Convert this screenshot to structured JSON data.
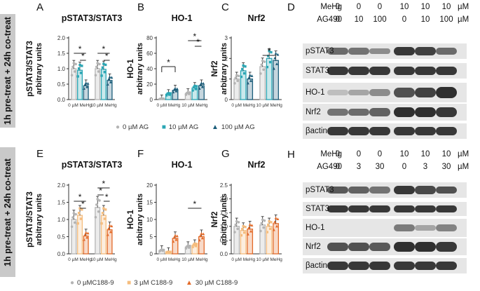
{
  "side_labels": [
    "1h pre-treat + 24h co-treat",
    "1h pre-treat + 24h co-treat"
  ],
  "colors": {
    "top": [
      "#b4b4b4",
      "#2aa6b4",
      "#1b5d7a"
    ],
    "bottom": [
      "#b4b4b4",
      "#f5bd7e",
      "#e36a28"
    ]
  },
  "panels": [
    {
      "letter": "A",
      "title": "pSTAT3/STAT3",
      "ylabel_lines": [
        "pSTAT3/STAT3",
        "arbitrary units"
      ],
      "yticks": [
        "0.0",
        "0.5",
        "1.0",
        "1.5",
        "2.0"
      ],
      "ymax": 2,
      "xlabels": [
        "0 µM MeHg",
        "10 µM MeHg"
      ],
      "scheme": "top",
      "chart_data": {
        "type": "bar",
        "categories": [
          "0 µM MeHg",
          "10 µM MeHg"
        ],
        "series": [
          {
            "name": "0 µM AG",
            "values": [
              1.0,
              1.0
            ]
          },
          {
            "name": "10 µM AG",
            "values": [
              0.95,
              0.98
            ]
          },
          {
            "name": "100 µM AG",
            "values": [
              0.45,
              0.62
            ]
          }
        ],
        "ylim": [
          0,
          2
        ]
      },
      "signif": [
        "*",
        "*",
        "*",
        "*"
      ]
    },
    {
      "letter": "B",
      "title": "HO-1",
      "ylabel_lines": [
        "HO-1",
        "arbitrary units"
      ],
      "yticks": [
        "0",
        "20",
        "40",
        "60",
        "80"
      ],
      "ymax": 80,
      "xlabels": [
        "0 µM MeHg",
        "10 µM MeHg"
      ],
      "scheme": "top",
      "chart_data": {
        "type": "bar",
        "categories": [
          "0 µM MeHg",
          "10 µM MeHg"
        ],
        "series": [
          {
            "name": "0 µM AG",
            "values": [
              1,
              8
            ]
          },
          {
            "name": "10 µM AG",
            "values": [
              7,
              15
            ]
          },
          {
            "name": "100 µM AG",
            "values": [
              12,
              18
            ]
          }
        ],
        "ylim": [
          0,
          80
        ]
      },
      "signif": [
        "*",
        "*",
        "*"
      ]
    },
    {
      "letter": "C",
      "title": "Nrf2",
      "ylabel_lines": [
        "Nrf2",
        "arbitrary units"
      ],
      "yticks": [
        "0",
        "1",
        "2",
        "3"
      ],
      "ymax": 3,
      "xlabels": [
        "0 µM MeHg",
        "10 µM MeHg"
      ],
      "scheme": "top",
      "chart_data": {
        "type": "bar",
        "categories": [
          "0 µM MeHg",
          "10 µM MeHg"
        ],
        "series": [
          {
            "name": "0 µM AG",
            "values": [
              1.0,
              1.6
            ]
          },
          {
            "name": "10 µM AG",
            "values": [
              1.4,
              2.0
            ]
          },
          {
            "name": "100 µM AG",
            "values": [
              1.0,
              1.9
            ]
          }
        ],
        "ylim": [
          0,
          3
        ]
      },
      "signif": [
        "*"
      ]
    },
    {
      "letter": "E",
      "title": "pSTAT3/STAT3",
      "ylabel_lines": [
        "pSTAT3/STAT3",
        "arbitrary units"
      ],
      "yticks": [
        "0.0",
        "0.5",
        "1.0",
        "1.5",
        "2.0"
      ],
      "ymax": 2,
      "xlabels": [
        "0 µM MeHg",
        "10 µM MeHg"
      ],
      "scheme": "bottom",
      "chart_data": {
        "type": "bar",
        "categories": [
          "0 µM MeHg",
          "10 µM MeHg"
        ],
        "series": [
          {
            "name": "0 µMC188-9",
            "values": [
              1.0,
              1.35
            ]
          },
          {
            "name": "3 µM C188-9",
            "values": [
              1.12,
              1.12
            ]
          },
          {
            "name": "30 µM C188-9",
            "values": [
              0.52,
              0.7
            ]
          }
        ],
        "ylim": [
          0,
          2
        ]
      },
      "signif": [
        "*",
        "*",
        "*",
        "*",
        "*"
      ]
    },
    {
      "letter": "F",
      "title": "HO-1",
      "ylabel_lines": [
        "HO-1",
        "arbitrary units"
      ],
      "yticks": [
        "0",
        "5",
        "10",
        "15",
        "20"
      ],
      "ymax": 20,
      "xlabels": [
        "0 µM MeHg",
        "10 µM MeHg"
      ],
      "scheme": "bottom",
      "chart_data": {
        "type": "bar",
        "categories": [
          "0 µM MeHg",
          "10 µM MeHg"
        ],
        "series": [
          {
            "name": "0 µMC188-9",
            "values": [
              1.0,
              2.0
            ]
          },
          {
            "name": "3 µM C188-9",
            "values": [
              0.5,
              2.5
            ]
          },
          {
            "name": "30 µM C188-9",
            "values": [
              4.5,
              5.0
            ]
          }
        ],
        "ylim": [
          0,
          20
        ]
      },
      "signif": [
        "*"
      ]
    },
    {
      "letter": "G",
      "title": "Nrf2",
      "ylabel_lines": [
        "Nrf2",
        "arbitrary units"
      ],
      "yticks": [
        "0.0",
        "0.5",
        "1.0",
        "1.5",
        "2.0",
        "2.5"
      ],
      "ymax": 2.5,
      "xlabels": [
        "0 µM MeHg",
        "10 µM MeHg"
      ],
      "scheme": "bottom",
      "chart_data": {
        "type": "bar",
        "categories": [
          "0 µM MeHg",
          "10 µM MeHg"
        ],
        "series": [
          {
            "name": "0 µMC188-9",
            "values": [
              1.0,
              1.05
            ]
          },
          {
            "name": "3 µM C188-9",
            "values": [
              0.85,
              1.0
            ]
          },
          {
            "name": "30 µM C188-9",
            "values": [
              0.9,
              1.1
            ]
          }
        ],
        "ylim": [
          0,
          2.5
        ]
      },
      "signif": []
    }
  ],
  "legends": {
    "top": [
      "0 µM AG",
      "10 µM AG",
      "100 µM AG"
    ],
    "bottom": [
      "0 µMC188-9",
      "3 µM C188-9",
      "30 µM C188-9"
    ]
  },
  "blots": [
    {
      "letter": "D",
      "rows": [
        {
          "label": "MeHg",
          "values": [
            "0",
            "0",
            "0",
            "10",
            "10",
            "10"
          ],
          "unit": "µM"
        },
        {
          "label": "AG490",
          "values": [
            "0",
            "10",
            "100",
            "0",
            "10",
            "100"
          ],
          "unit": "µM"
        }
      ],
      "lanes": [
        {
          "name": "pSTAT3",
          "intensity": [
            0.55,
            0.5,
            0.35,
            0.85,
            0.8,
            0.55
          ]
        },
        {
          "name": "STAT3",
          "intensity": [
            0.85,
            0.85,
            0.85,
            0.85,
            0.85,
            0.85
          ]
        },
        {
          "name": "HO-1",
          "intensity": [
            0.05,
            0.2,
            0.35,
            0.7,
            0.8,
            0.9
          ]
        },
        {
          "name": "Nrf2",
          "intensity": [
            0.5,
            0.55,
            0.6,
            0.9,
            0.9,
            0.85
          ]
        },
        {
          "name": "βactin",
          "intensity": [
            0.85,
            0.85,
            0.85,
            0.85,
            0.85,
            0.85
          ]
        }
      ]
    },
    {
      "letter": "H",
      "rows": [
        {
          "label": "MeHg",
          "values": [
            "0",
            "0",
            "0",
            "10",
            "10",
            "10"
          ],
          "unit": "µM"
        },
        {
          "label": "AG490",
          "values": [
            "0",
            "3",
            "30",
            "0",
            "3",
            "30"
          ],
          "unit": "µM"
        }
      ],
      "lanes": [
        {
          "name": "pSTAT3",
          "intensity": [
            0.65,
            0.6,
            0.5,
            0.85,
            0.75,
            0.7
          ]
        },
        {
          "name": "STAT3",
          "intensity": [
            0.85,
            0.85,
            0.85,
            0.85,
            0.85,
            0.85
          ]
        },
        {
          "name": "HO-1",
          "intensity": [
            0,
            0,
            0,
            0.45,
            0.2,
            0.4
          ]
        },
        {
          "name": "Nrf2",
          "intensity": [
            0.7,
            0.7,
            0.65,
            0.9,
            0.9,
            0.85
          ]
        },
        {
          "name": "βactin",
          "intensity": [
            0.85,
            0.85,
            0.85,
            0.85,
            0.85,
            0.85
          ]
        }
      ]
    }
  ]
}
